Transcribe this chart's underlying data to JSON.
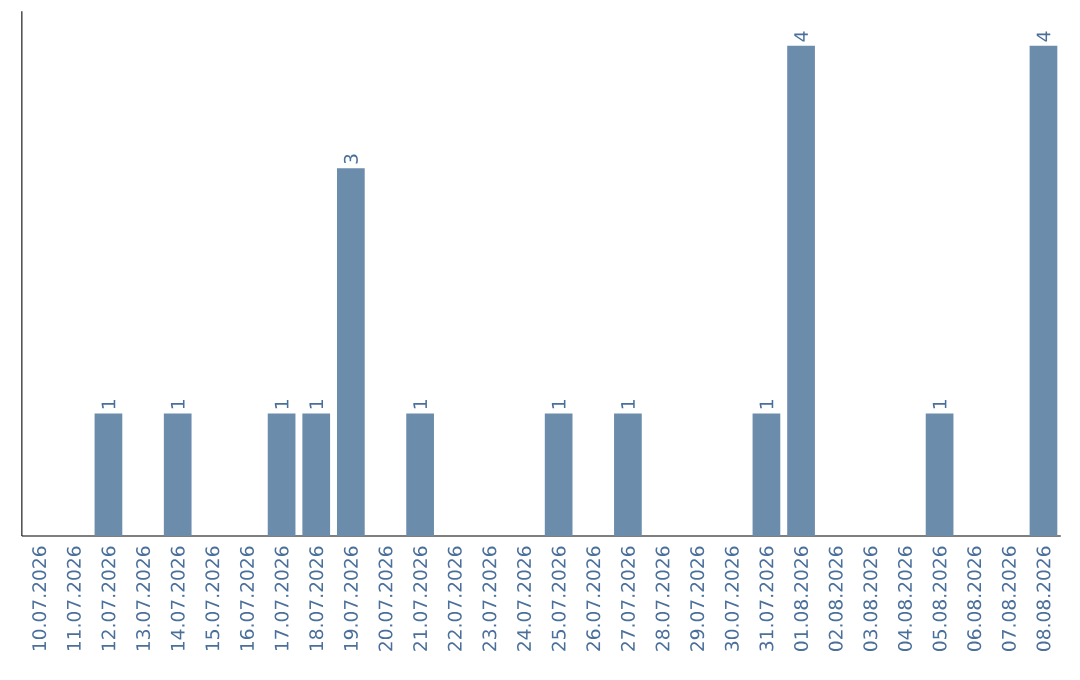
{
  "chart_data": {
    "type": "bar",
    "categories": [
      "10.07.2026",
      "11.07.2026",
      "12.07.2026",
      "13.07.2026",
      "14.07.2026",
      "15.07.2026",
      "16.07.2026",
      "17.07.2026",
      "18.07.2026",
      "19.07.2026",
      "20.07.2026",
      "21.07.2026",
      "22.07.2026",
      "23.07.2026",
      "24.07.2026",
      "25.07.2026",
      "26.07.2026",
      "27.07.2026",
      "28.07.2026",
      "29.07.2026",
      "30.07.2026",
      "31.07.2026",
      "01.08.2026",
      "02.08.2026",
      "03.08.2026",
      "04.08.2026",
      "05.08.2026",
      "06.08.2026",
      "07.08.2026",
      "08.08.2026"
    ],
    "values": [
      0,
      0,
      1,
      0,
      1,
      0,
      0,
      1,
      1,
      3,
      0,
      1,
      0,
      0,
      0,
      1,
      0,
      1,
      0,
      0,
      0,
      1,
      4,
      0,
      0,
      0,
      1,
      0,
      0,
      4
    ],
    "value_labels": [
      null,
      null,
      "1",
      null,
      "1",
      null,
      null,
      "1",
      "1",
      "3",
      null,
      "1",
      null,
      null,
      null,
      "1",
      null,
      "1",
      null,
      null,
      null,
      "1",
      "4",
      null,
      null,
      null,
      "1",
      null,
      null,
      "4"
    ],
    "color": "#6b8cab"
  }
}
